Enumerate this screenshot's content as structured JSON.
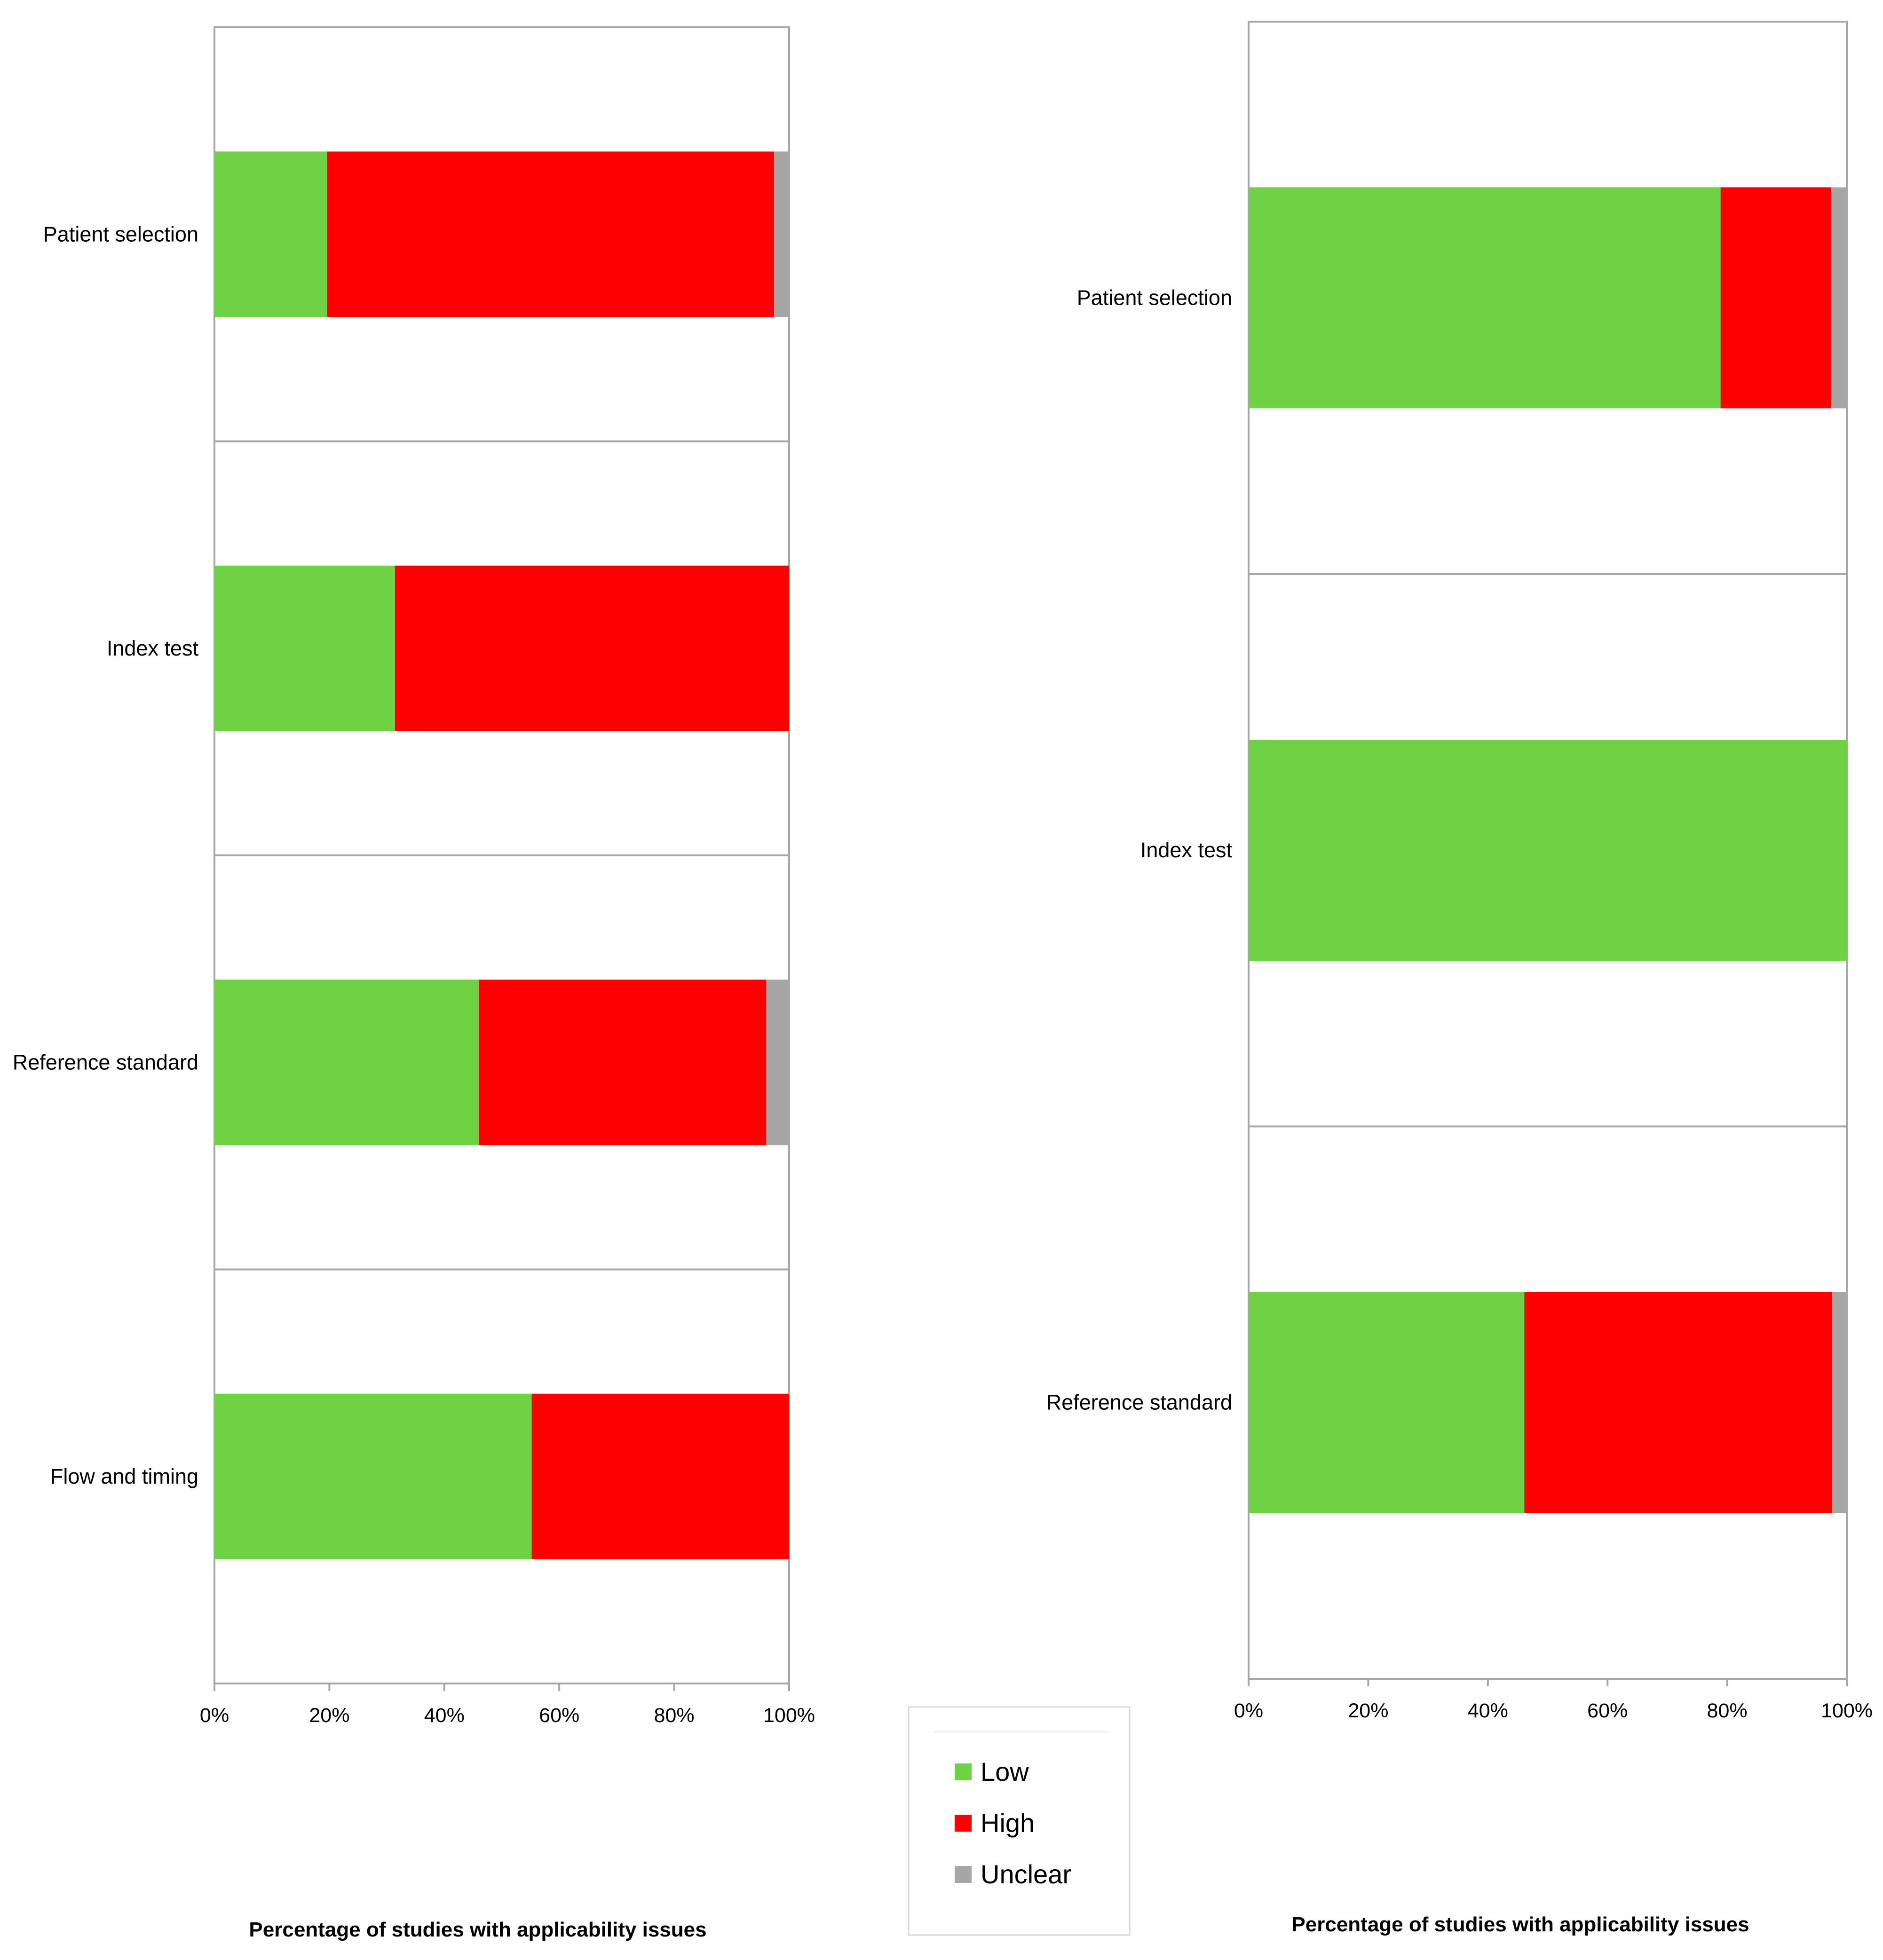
{
  "legend": {
    "items": [
      {
        "label": "Low",
        "color": "#6ed244"
      },
      {
        "label": "High",
        "color": "#ff0000"
      },
      {
        "label": "Unclear",
        "color": "#a6a6a6"
      }
    ]
  },
  "chart_data": [
    {
      "type": "bar",
      "orientation": "horizontal",
      "stacked": true,
      "categories": [
        "Patient selection",
        "Index test",
        "Reference standard",
        "Flow and timing"
      ],
      "series": [
        {
          "name": "Low",
          "color": "#6ed244",
          "values": [
            19.6,
            31.4,
            46.0,
            55.2
          ]
        },
        {
          "name": "High",
          "color": "#ff0000",
          "values": [
            77.8,
            68.6,
            50.0,
            44.8
          ]
        },
        {
          "name": "Unclear",
          "color": "#a6a6a6",
          "values": [
            2.6,
            0,
            4.0,
            0
          ]
        }
      ],
      "xlim": [
        0,
        100
      ],
      "xticks": [
        "0%",
        "20%",
        "40%",
        "60%",
        "80%",
        "100%"
      ],
      "xlabel": "Percentage of studies with applicability issues"
    },
    {
      "type": "bar",
      "orientation": "horizontal",
      "stacked": true,
      "categories": [
        "Patient selection",
        "Index test",
        "Reference standard"
      ],
      "series": [
        {
          "name": "Low",
          "color": "#6ed244",
          "values": [
            78.9,
            100,
            46.1
          ]
        },
        {
          "name": "High",
          "color": "#ff0000",
          "values": [
            18.5,
            0,
            51.4
          ]
        },
        {
          "name": "Unclear",
          "color": "#a6a6a6",
          "values": [
            2.6,
            0,
            2.5
          ]
        }
      ],
      "xlim": [
        0,
        100
      ],
      "xticks": [
        "0%",
        "20%",
        "40%",
        "60%",
        "80%",
        "100%"
      ],
      "xlabel": "Percentage of studies with applicability issues"
    }
  ]
}
